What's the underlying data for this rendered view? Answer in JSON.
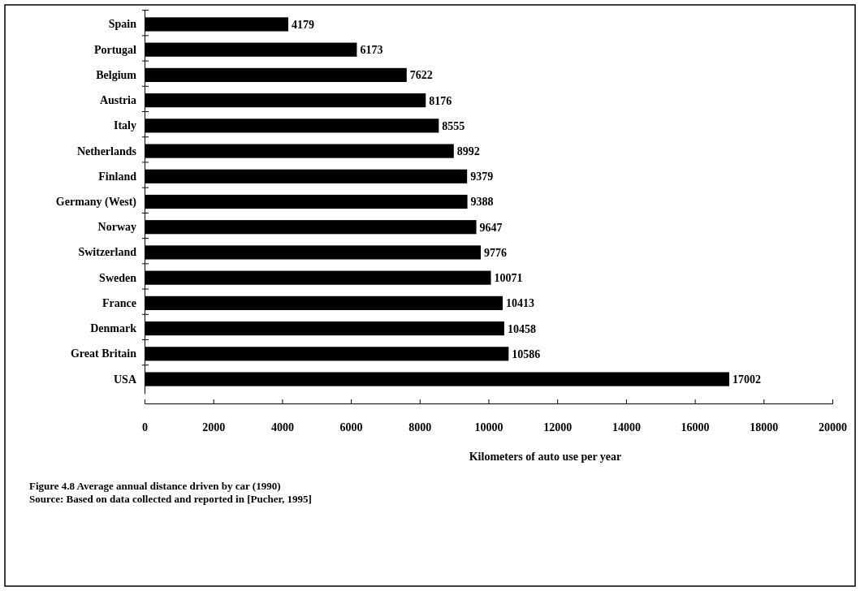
{
  "chart_data": {
    "type": "bar",
    "orientation": "horizontal",
    "xlabel": "Kilometers of auto use per year",
    "categories": [
      "Spain",
      "Portugal",
      "Belgium",
      "Austria",
      "Italy",
      "Netherlands",
      "Finland",
      "Germany (West)",
      "Norway",
      "Switzerland",
      "Sweden",
      "France",
      "Denmark",
      "Great Britain",
      "USA"
    ],
    "values": [
      4179,
      6173,
      7622,
      8176,
      8555,
      8992,
      9379,
      9388,
      9647,
      9776,
      10071,
      10413,
      10458,
      10586,
      17002
    ],
    "color": "#000000",
    "data_labels": true,
    "xlim": [
      0,
      20000
    ],
    "xticks": [
      0,
      2000,
      4000,
      6000,
      8000,
      10000,
      12000,
      14000,
      16000,
      18000,
      20000
    ],
    "grid": false,
    "annotations": [
      "Figure 4.8  Average annual distance driven by car (1990)",
      "Source:  Based on data collected and reported in [Pucher, 1995]"
    ]
  }
}
